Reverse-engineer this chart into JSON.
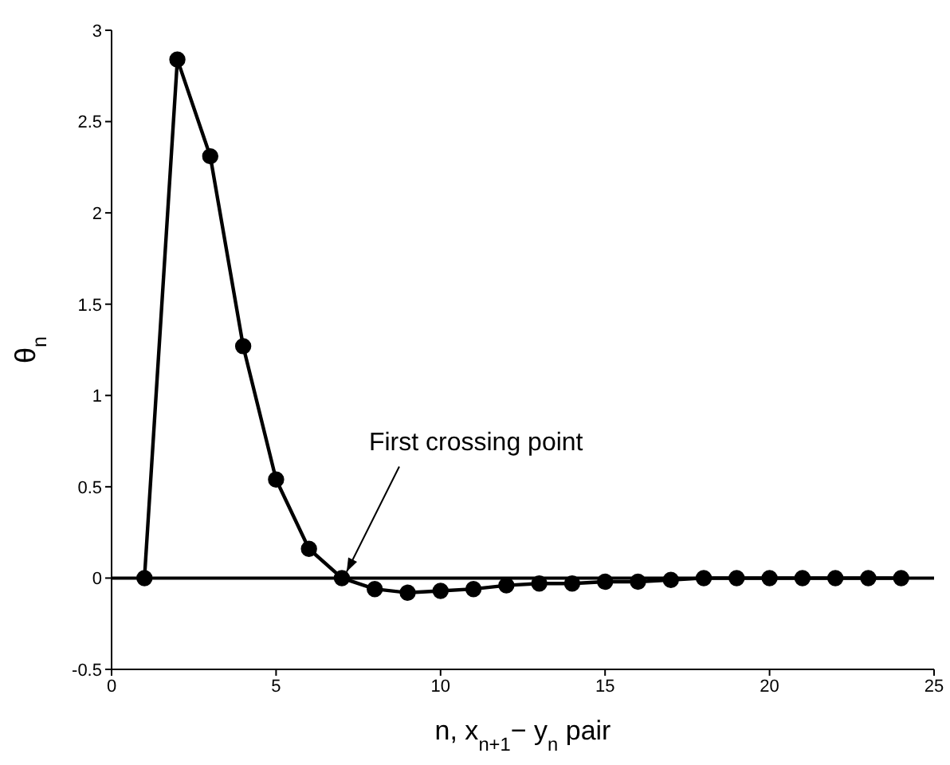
{
  "chart_data": {
    "type": "line",
    "xlabel": "n, x$_{n+1}$− y$_{n}$ pair",
    "ylabel": "θ$_{n}$",
    "x": [
      1,
      2,
      3,
      4,
      5,
      6,
      7,
      8,
      9,
      10,
      11,
      12,
      13,
      14,
      15,
      16,
      17,
      18,
      19,
      20,
      21,
      22,
      23,
      24
    ],
    "series": [
      {
        "color": "#000000",
        "values": [
          0,
          2.84,
          2.31,
          1.27,
          0.54,
          0.16,
          0,
          -0.06,
          -0.08,
          -0.07,
          -0.06,
          -0.04,
          -0.03,
          -0.03,
          -0.02,
          -0.02,
          -0.01,
          0,
          0,
          0,
          0,
          0,
          0,
          0
        ]
      }
    ],
    "xlim": [
      0,
      25
    ],
    "xticks": [
      0,
      5,
      10,
      15,
      20,
      25
    ],
    "ylim": [
      -0.5,
      3
    ],
    "yticks": [
      -0.5,
      0,
      0.5,
      1,
      1.5,
      2,
      2.5,
      3
    ],
    "ref_lines": [
      {
        "axis": "y",
        "value": 0,
        "color": "#000000",
        "line_style": "solid"
      }
    ],
    "annotations": [
      {
        "text": "First crossing point",
        "x": 7,
        "y": 0
      }
    ],
    "marker": "circle",
    "line_style": "solid"
  }
}
